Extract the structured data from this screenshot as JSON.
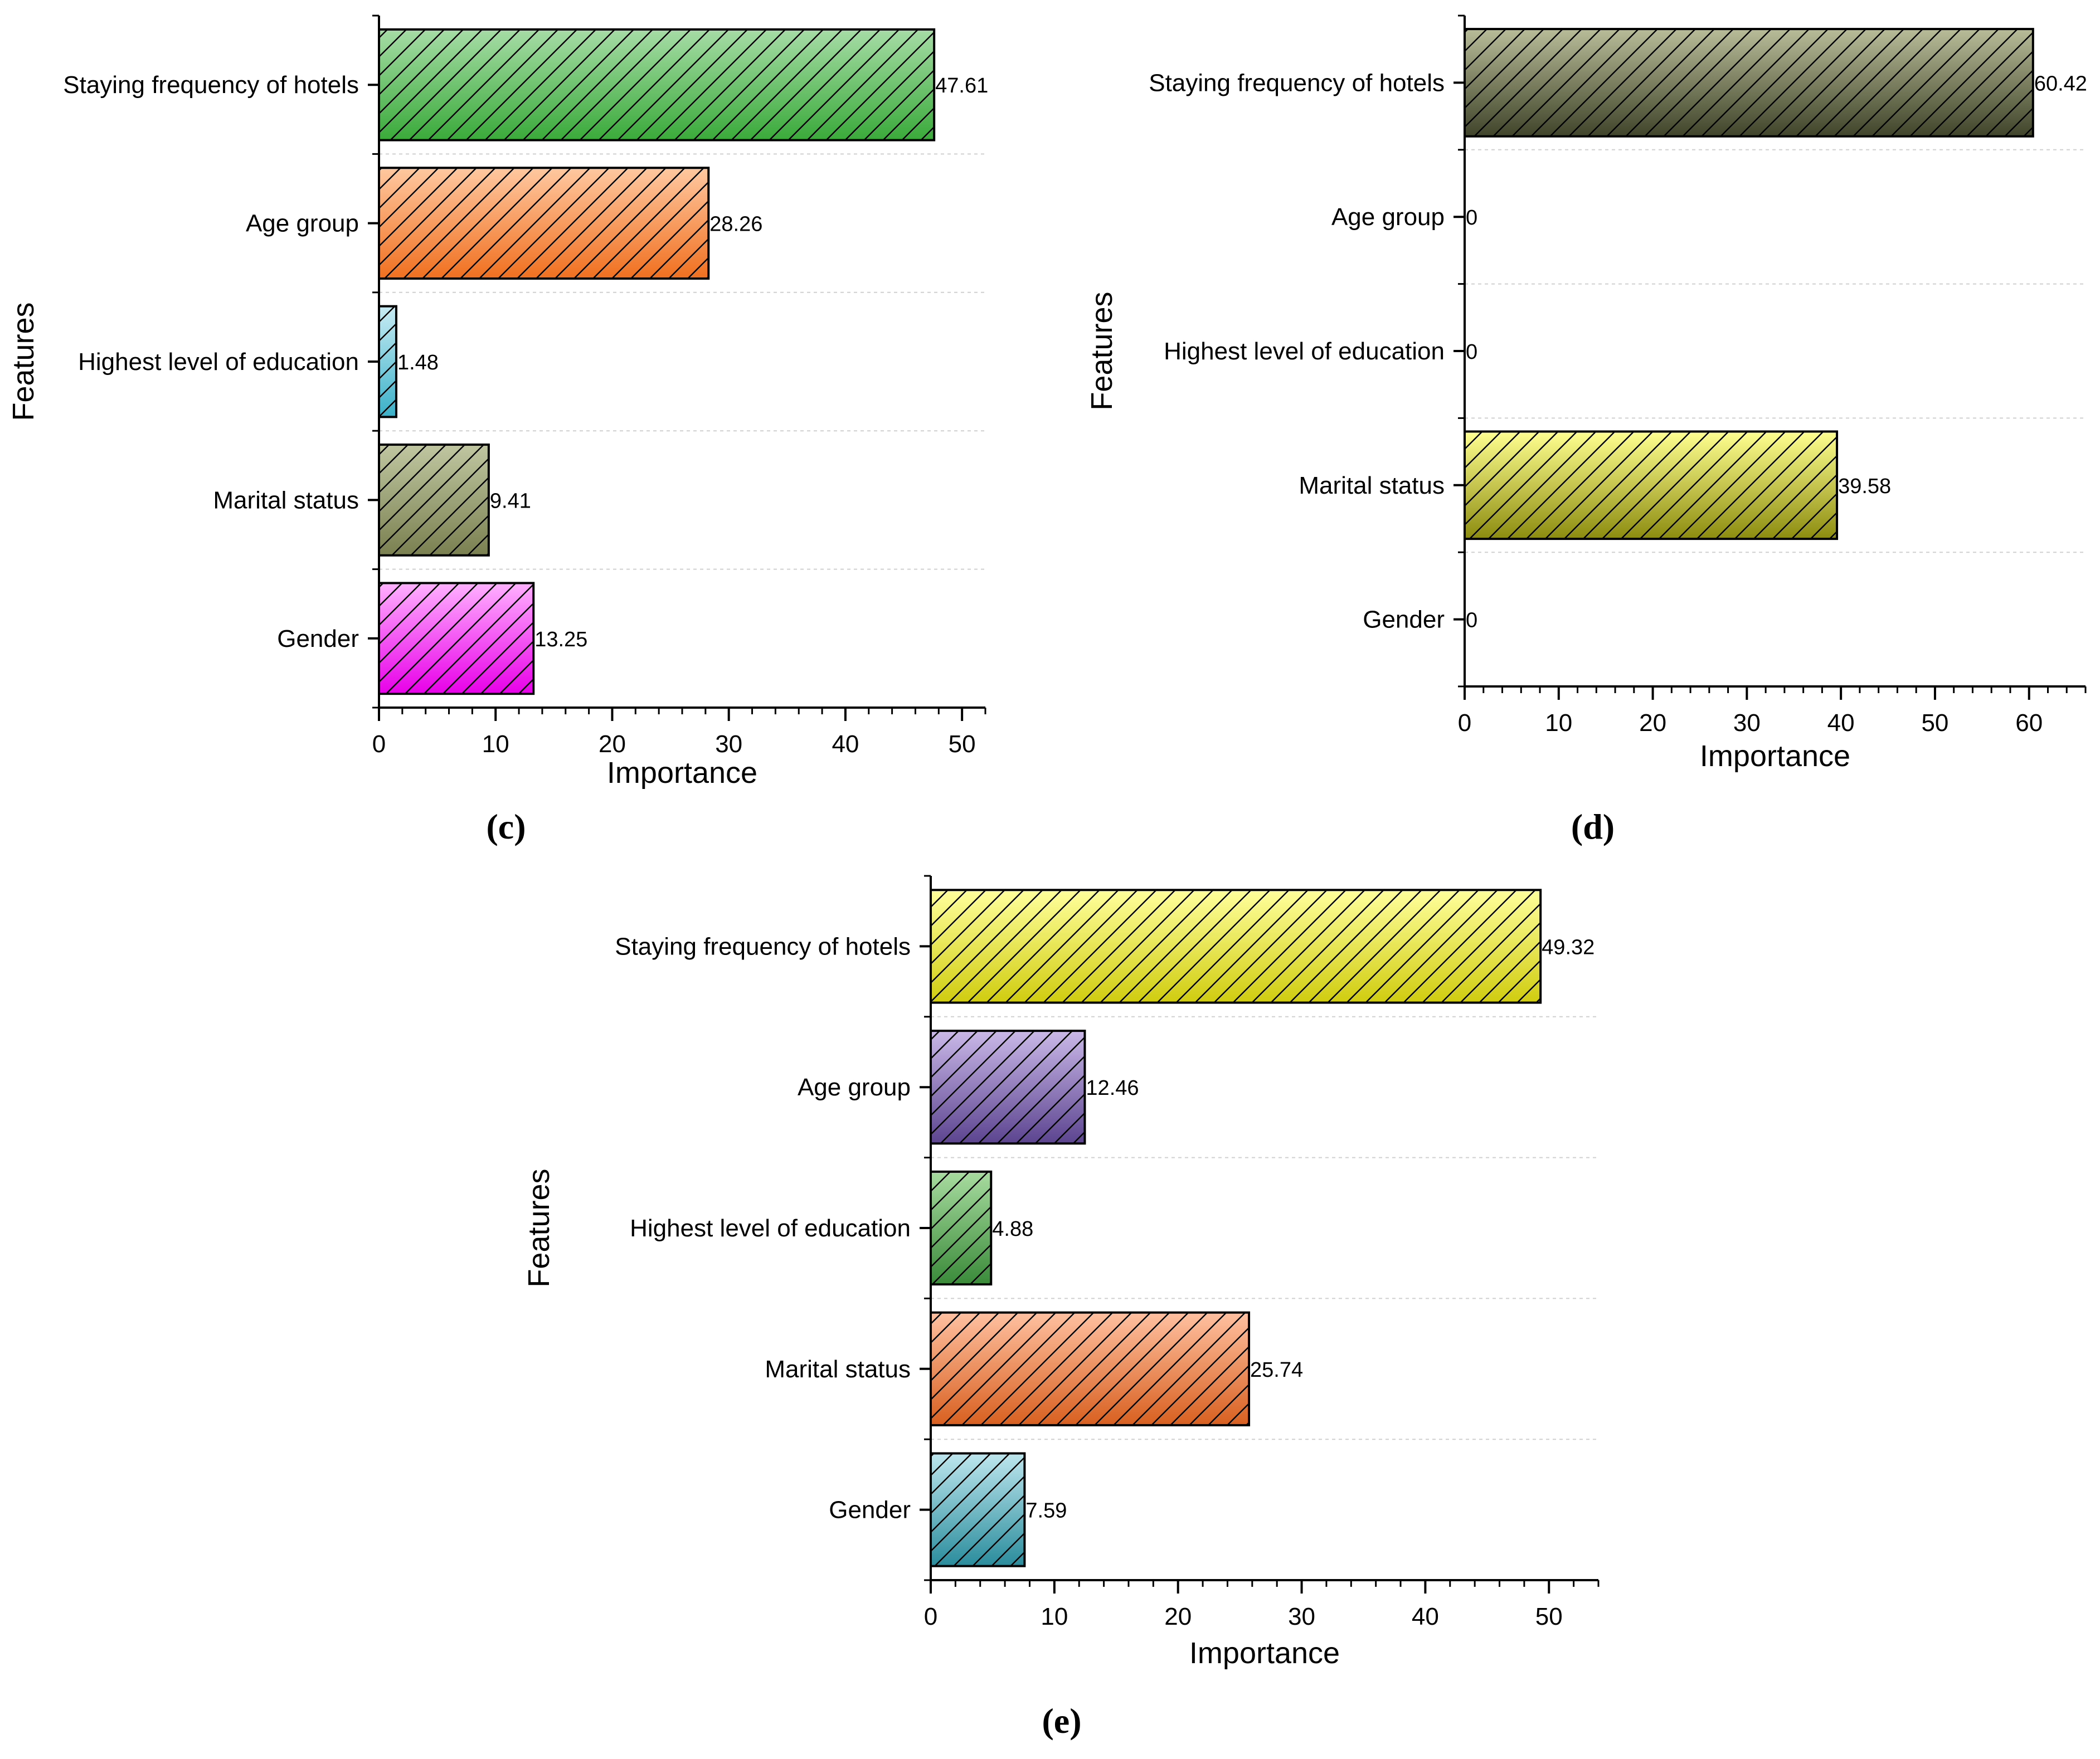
{
  "chart_data": [
    {
      "id": "c",
      "type": "bar",
      "orientation": "horizontal",
      "panel_label": "(c)",
      "xlabel": "Importance",
      "ylabel": "Features",
      "xlim": [
        0,
        52
      ],
      "xticks": [
        "0",
        "10",
        "20",
        "30",
        "40",
        "50"
      ],
      "xtick_values": [
        0,
        10,
        20,
        30,
        40,
        50
      ],
      "categories": [
        "Staying frequency of hotels",
        "Age group",
        "Highest level of education",
        "Marital status",
        "Gender"
      ],
      "values": [
        47.61,
        28.26,
        1.48,
        9.41,
        13.25
      ],
      "value_labels": [
        "47.61",
        "28.26",
        "1.48",
        "9.41",
        "13.25"
      ],
      "bar_colors": [
        [
          "#a6dca6",
          "#3aaa3a"
        ],
        [
          "#ffc8a0",
          "#f07020"
        ],
        [
          "#c8ecf4",
          "#3ab0c8"
        ],
        [
          "#c0c6a0",
          "#7a8050"
        ],
        [
          "#ffb0ff",
          "#e800e8"
        ]
      ],
      "grid": true
    },
    {
      "id": "d",
      "type": "bar",
      "orientation": "horizontal",
      "panel_label": "(d)",
      "xlabel": "Importance",
      "ylabel": "Features",
      "xlim": [
        0,
        66
      ],
      "xticks": [
        "0",
        "10",
        "20",
        "30",
        "40",
        "50",
        "60"
      ],
      "xtick_values": [
        0,
        10,
        20,
        30,
        40,
        50,
        60
      ],
      "categories": [
        "Staying frequency of hotels",
        "Age group",
        "Highest level of education",
        "Marital status",
        "Gender"
      ],
      "values": [
        60.42,
        0,
        0,
        39.58,
        0
      ],
      "value_labels": [
        "60.42",
        "0",
        "0",
        "39.58",
        "0"
      ],
      "bar_colors": [
        [
          "#b8bc98",
          "#40442a"
        ],
        [
          "#cccccc",
          "#888888"
        ],
        [
          "#cccccc",
          "#888888"
        ],
        [
          "#ffff90",
          "#8c8c10"
        ],
        [
          "#cccccc",
          "#888888"
        ]
      ],
      "grid": true
    },
    {
      "id": "e",
      "type": "bar",
      "orientation": "horizontal",
      "panel_label": "(e)",
      "xlabel": "Importance",
      "ylabel": "Features",
      "xlim": [
        0,
        54
      ],
      "xticks": [
        "0",
        "10",
        "20",
        "30",
        "40",
        "50"
      ],
      "xtick_values": [
        0,
        10,
        20,
        30,
        40,
        50
      ],
      "categories": [
        "Staying frequency of hotels",
        "Age group",
        "Highest level of education",
        "Marital status",
        "Gender"
      ],
      "values": [
        49.32,
        12.46,
        4.88,
        25.74,
        7.59
      ],
      "value_labels": [
        "49.32",
        "12.46",
        "4.88",
        "25.74",
        "7.59"
      ],
      "bar_colors": [
        [
          "#ffff9c",
          "#d0cc10"
        ],
        [
          "#cab8e8",
          "#5c4490"
        ],
        [
          "#a8dca0",
          "#3a8a3a"
        ],
        [
          "#ffc0a0",
          "#d86020"
        ],
        [
          "#bde6ee",
          "#2a8c9c"
        ]
      ],
      "grid": true
    }
  ]
}
